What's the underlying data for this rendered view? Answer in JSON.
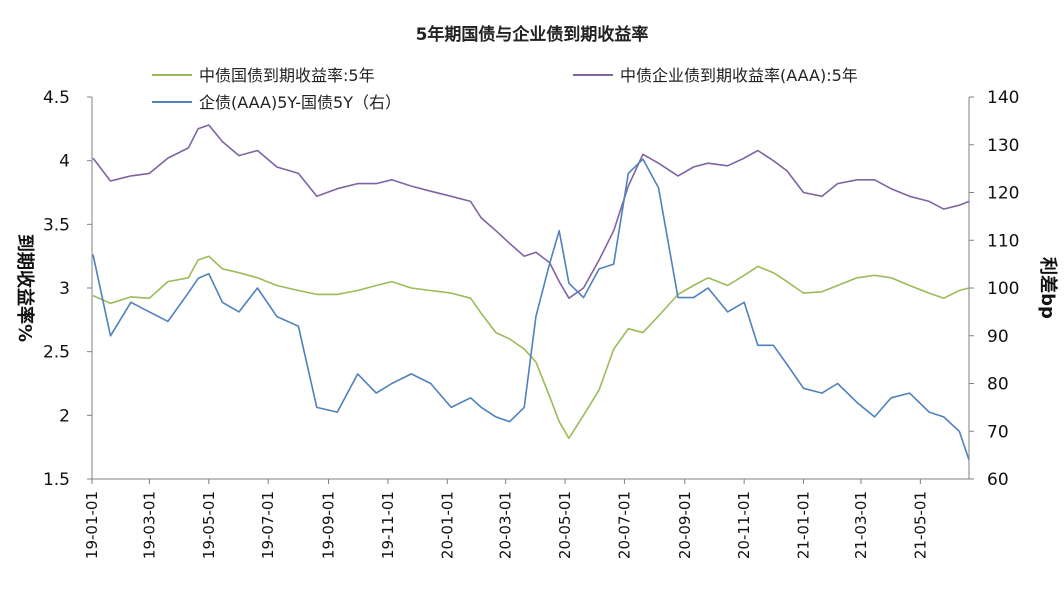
{
  "chart_data": {
    "type": "line",
    "title": "5年期国债与企业债到期收益率",
    "ylabel_left": "到期收益率%",
    "ylabel_right": "利差bp",
    "ylim_left": [
      1.5,
      4.5
    ],
    "yticks_left": [
      "4.5",
      "4",
      "3.5",
      "3",
      "2.5",
      "2",
      "1.5"
    ],
    "ylim_right": [
      60,
      140
    ],
    "yticks_right": [
      "140",
      "130",
      "120",
      "110",
      "100",
      "90",
      "80",
      "70",
      "60"
    ],
    "x_range": [
      "2019-01-01",
      "2021-06-20"
    ],
    "xticks": [
      "19-01-01",
      "19-03-01",
      "19-05-01",
      "19-07-01",
      "19-09-01",
      "19-11-01",
      "20-01-01",
      "20-03-01",
      "20-05-01",
      "20-07-01",
      "20-09-01",
      "20-11-01",
      "21-01-01",
      "21-03-01",
      "21-05-01"
    ],
    "grid": false,
    "legend_position": "top",
    "series": [
      {
        "name": "中债国债到期收益率:5年",
        "axis": "left",
        "color": "#9bbb59",
        "x": [
          "2019-01-02",
          "2019-01-20",
          "2019-02-10",
          "2019-03-01",
          "2019-03-20",
          "2019-04-10",
          "2019-04-20",
          "2019-05-01",
          "2019-05-15",
          "2019-06-01",
          "2019-06-20",
          "2019-07-10",
          "2019-08-01",
          "2019-08-20",
          "2019-09-10",
          "2019-10-01",
          "2019-10-20",
          "2019-11-05",
          "2019-11-25",
          "2019-12-15",
          "2020-01-05",
          "2020-01-25",
          "2020-02-05",
          "2020-02-20",
          "2020-03-05",
          "2020-03-20",
          "2020-04-01",
          "2020-04-15",
          "2020-04-25",
          "2020-05-05",
          "2020-05-20",
          "2020-06-05",
          "2020-06-20",
          "2020-07-05",
          "2020-07-20",
          "2020-08-05",
          "2020-08-25",
          "2020-09-10",
          "2020-09-25",
          "2020-10-15",
          "2020-11-01",
          "2020-11-15",
          "2020-12-01",
          "2020-12-15",
          "2021-01-01",
          "2021-01-20",
          "2021-02-05",
          "2021-02-25",
          "2021-03-15",
          "2021-04-01",
          "2021-04-20",
          "2021-05-10",
          "2021-05-25",
          "2021-06-10",
          "2021-06-20"
        ],
        "values": [
          2.94,
          2.88,
          2.93,
          2.92,
          3.05,
          3.08,
          3.22,
          3.25,
          3.15,
          3.12,
          3.08,
          3.02,
          2.98,
          2.95,
          2.95,
          2.98,
          3.02,
          3.05,
          3.0,
          2.98,
          2.96,
          2.92,
          2.8,
          2.65,
          2.6,
          2.52,
          2.42,
          2.15,
          1.95,
          1.82,
          2.0,
          2.2,
          2.52,
          2.68,
          2.65,
          2.78,
          2.95,
          3.02,
          3.08,
          3.02,
          3.1,
          3.17,
          3.12,
          3.05,
          2.96,
          2.97,
          3.02,
          3.08,
          3.1,
          3.08,
          3.02,
          2.96,
          2.92,
          2.98,
          3.0
        ]
      },
      {
        "name": "中债企业债到期收益率(AAA):5年",
        "axis": "left",
        "color": "#8064a2",
        "x": [
          "2019-01-02",
          "2019-01-20",
          "2019-02-10",
          "2019-03-01",
          "2019-03-20",
          "2019-04-10",
          "2019-04-20",
          "2019-05-01",
          "2019-05-15",
          "2019-06-01",
          "2019-06-20",
          "2019-07-10",
          "2019-08-01",
          "2019-08-20",
          "2019-09-10",
          "2019-10-01",
          "2019-10-20",
          "2019-11-05",
          "2019-11-25",
          "2019-12-15",
          "2020-01-05",
          "2020-01-25",
          "2020-02-05",
          "2020-02-20",
          "2020-03-05",
          "2020-03-20",
          "2020-04-01",
          "2020-04-15",
          "2020-04-25",
          "2020-05-05",
          "2020-05-20",
          "2020-06-05",
          "2020-06-20",
          "2020-07-05",
          "2020-07-20",
          "2020-08-05",
          "2020-08-25",
          "2020-09-10",
          "2020-09-25",
          "2020-10-15",
          "2020-11-01",
          "2020-11-15",
          "2020-12-01",
          "2020-12-15",
          "2021-01-01",
          "2021-01-20",
          "2021-02-05",
          "2021-02-25",
          "2021-03-15",
          "2021-04-01",
          "2021-04-20",
          "2021-05-10",
          "2021-05-25",
          "2021-06-10",
          "2021-06-20"
        ],
        "values": [
          4.02,
          3.84,
          3.88,
          3.9,
          4.02,
          4.1,
          4.25,
          4.28,
          4.15,
          4.04,
          4.08,
          3.95,
          3.9,
          3.72,
          3.78,
          3.82,
          3.82,
          3.85,
          3.8,
          3.76,
          3.72,
          3.68,
          3.55,
          3.45,
          3.35,
          3.25,
          3.28,
          3.2,
          3.05,
          2.92,
          3.0,
          3.22,
          3.45,
          3.8,
          4.05,
          3.98,
          3.88,
          3.95,
          3.98,
          3.96,
          4.02,
          4.08,
          4.0,
          3.92,
          3.75,
          3.72,
          3.82,
          3.85,
          3.85,
          3.78,
          3.72,
          3.68,
          3.62,
          3.65,
          3.68
        ]
      },
      {
        "name": "企债(AAA)5Y-国债5Y（右）",
        "axis": "right",
        "color": "#4f81bd",
        "x": [
          "2019-01-02",
          "2019-01-20",
          "2019-02-10",
          "2019-03-01",
          "2019-03-20",
          "2019-04-10",
          "2019-04-20",
          "2019-05-01",
          "2019-05-15",
          "2019-06-01",
          "2019-06-20",
          "2019-07-10",
          "2019-08-01",
          "2019-08-20",
          "2019-09-10",
          "2019-10-01",
          "2019-10-20",
          "2019-11-05",
          "2019-11-25",
          "2019-12-15",
          "2020-01-05",
          "2020-01-25",
          "2020-02-05",
          "2020-02-20",
          "2020-03-05",
          "2020-03-20",
          "2020-04-01",
          "2020-04-15",
          "2020-04-25",
          "2020-05-05",
          "2020-05-20",
          "2020-06-05",
          "2020-06-20",
          "2020-07-05",
          "2020-07-20",
          "2020-08-05",
          "2020-08-25",
          "2020-09-10",
          "2020-09-25",
          "2020-10-15",
          "2020-11-01",
          "2020-11-15",
          "2020-12-01",
          "2020-12-15",
          "2021-01-01",
          "2021-01-20",
          "2021-02-05",
          "2021-02-25",
          "2021-03-15",
          "2021-04-01",
          "2021-04-20",
          "2021-05-10",
          "2021-05-25",
          "2021-06-10",
          "2021-06-20"
        ],
        "values": [
          107,
          90,
          97,
          95,
          93,
          99,
          102,
          103,
          97,
          95,
          100,
          94,
          92,
          75,
          74,
          82,
          78,
          80,
          82,
          80,
          75,
          77,
          75,
          73,
          72,
          75,
          94,
          105,
          112,
          101,
          98,
          104,
          105,
          124,
          127,
          121,
          98,
          98,
          100,
          95,
          97,
          88,
          88,
          84,
          79,
          78,
          80,
          76,
          73,
          77,
          78,
          74,
          73,
          70,
          64
        ]
      }
    ]
  }
}
